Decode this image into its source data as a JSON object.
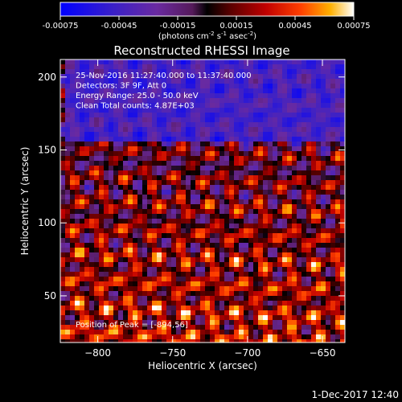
{
  "chart_data": {
    "type": "heatmap",
    "title": "Reconstructed RHESSI Image",
    "xlabel": "Heliocentric X (arcsec)",
    "ylabel": "Heliocentric Y (arcsec)",
    "xlim": [
      -825,
      -635
    ],
    "ylim": [
      18,
      212
    ],
    "x_ticks": [
      -800,
      -750,
      -700,
      -650
    ],
    "y_ticks": [
      50,
      100,
      150,
      200
    ],
    "colorbar": {
      "range": [
        -0.00075,
        0.00075
      ],
      "ticks": [
        "-0.00075",
        "-0.00045",
        "-0.00015",
        "0.00015",
        "0.00045",
        "0.00075"
      ],
      "unit_prefix": "(photons cm",
      "unit_exp1": "-2",
      "unit_mid1": " s",
      "unit_exp2": "-1",
      "unit_mid2": " asec",
      "unit_exp3": "-2",
      "unit_suffix": ")"
    },
    "annotations": [
      "25-Nov-2016 11:27:40.000 to 11:37:40.000",
      "Detectors: 3F 9F, Att 0",
      "Energy Range: 25.0 - 50.0 keV",
      "Clean    Total counts: 4.87E+03"
    ],
    "peak_label": "Position of Peak = [-894,56]",
    "grid": false
  },
  "footer": {
    "date": "1-Dec-2017 12:40"
  }
}
